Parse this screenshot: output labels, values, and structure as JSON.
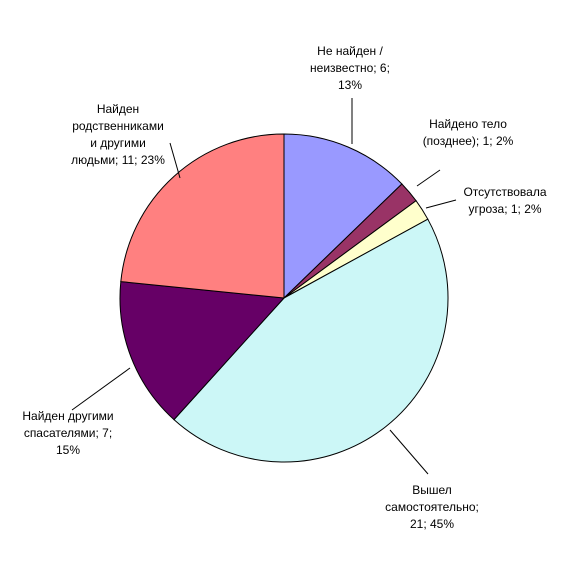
{
  "chart_data": {
    "type": "pie",
    "values": [
      6,
      1,
      1,
      21,
      7,
      11
    ],
    "value_labels": [
      [
        "Не найден /",
        "неизвестно; 6;",
        "13%"
      ],
      [
        "Найдено тело",
        "(позднее); 1; 2%"
      ],
      [
        "Отсутствовала",
        "угроза; 1; 2%"
      ],
      [
        "Вышел",
        "самостоятельно;",
        "21; 45%"
      ],
      [
        "Найден другими",
        "спасателями; 7;",
        "15%"
      ],
      [
        "Найден",
        "родственниками",
        "и другими",
        "людьми; 11; 23%"
      ]
    ],
    "colors": [
      "#9999ff",
      "#993366",
      "#ffffcc",
      "#ccf7f7",
      "#660066",
      "#ff8080"
    ]
  }
}
